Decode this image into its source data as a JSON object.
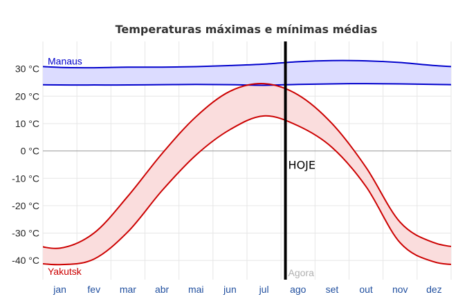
{
  "chart_data": {
    "type": "area",
    "title": "Temperaturas máximas e mínimas médias",
    "y_unit": "°C",
    "ylim": [
      -47,
      40
    ],
    "yticks": [
      30,
      20,
      10,
      0,
      -10,
      -20,
      -30,
      -40
    ],
    "ytick_labels": [
      "30 °C",
      "20 °C",
      "10 °C",
      "0 °C",
      "-10 °C",
      "-20 °C",
      "-30 °C",
      "-40 °C"
    ],
    "categories": [
      "jan",
      "fev",
      "mar",
      "abr",
      "mai",
      "jun",
      "jul",
      "ago",
      "set",
      "out",
      "nov",
      "dez"
    ],
    "grid": true,
    "series": [
      {
        "name": "Manaus",
        "color": "#0000cc",
        "fill": "#dcdcff",
        "max": [
          30.5,
          30.4,
          30.6,
          30.6,
          30.8,
          31.2,
          31.7,
          32.6,
          33.0,
          32.9,
          32.3,
          31.2
        ],
        "min": [
          24.1,
          24.1,
          24.1,
          24.2,
          24.3,
          24.2,
          24.0,
          24.3,
          24.5,
          24.6,
          24.5,
          24.3
        ]
      },
      {
        "name": "Yakutsk",
        "color": "#cc0000",
        "fill": "#fadddd",
        "max": [
          -35.5,
          -30.0,
          -16.5,
          -1.0,
          12.5,
          21.8,
          24.6,
          20.5,
          10.0,
          -6.0,
          -26.0,
          -33.5
        ],
        "min": [
          -41.5,
          -39.5,
          -29.5,
          -14.5,
          -1.5,
          7.8,
          12.8,
          9.2,
          1.3,
          -13.0,
          -33.5,
          -40.5
        ]
      }
    ],
    "markers": [
      {
        "label": "HOJE",
        "sublabel": "Agora",
        "position_month": 7.13
      }
    ]
  },
  "colors": {
    "grid": "#e6e6e6",
    "zero_line": "#999999",
    "marker_line": "#000000"
  }
}
